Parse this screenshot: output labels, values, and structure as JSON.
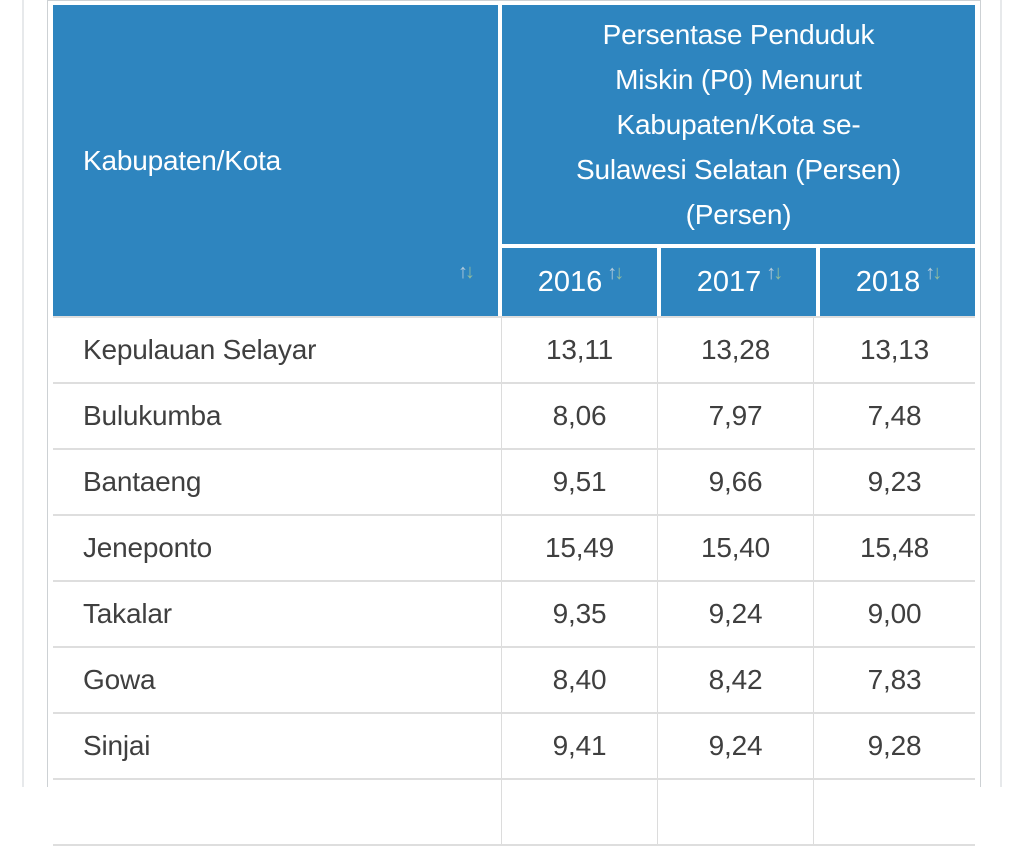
{
  "colors": {
    "header_blue": "#2e85bf",
    "header_text": "#ffffff",
    "body_text": "#3f3f3f",
    "row_border": "#dedede",
    "sort_up_arrow": "#b3cadb",
    "sort_down_arrow": "#90bb9d"
  },
  "icons": {
    "sort_asc": "↑",
    "sort_desc": "↓"
  },
  "table": {
    "name_header": "Kabupaten/Kota",
    "group_header": "Persentase Penduduk Miskin (P0) Menurut Kabupaten/Kota se-Sulawesi Selatan (Persen) (Persen)",
    "group_header_lines": [
      "Persentase Penduduk",
      "Miskin (P0) Menurut",
      "Kabupaten/Kota se-",
      "Sulawesi Selatan (Persen)",
      "(Persen)"
    ],
    "columns": [
      "2016",
      "2017",
      "2018"
    ],
    "rows": [
      {
        "name": "Kepulauan Selayar",
        "values": [
          "13,11",
          "13,28",
          "13,13"
        ]
      },
      {
        "name": "Bulukumba",
        "values": [
          "8,06",
          "7,97",
          "7,48"
        ]
      },
      {
        "name": "Bantaeng",
        "values": [
          "9,51",
          "9,66",
          "9,23"
        ]
      },
      {
        "name": "Jeneponto",
        "values": [
          "15,49",
          "15,40",
          "15,48"
        ]
      },
      {
        "name": "Takalar",
        "values": [
          "9,35",
          "9,24",
          "9,00"
        ]
      },
      {
        "name": "Gowa",
        "values": [
          "8,40",
          "8,42",
          "7,83"
        ]
      },
      {
        "name": "Sinjai",
        "values": [
          "9,41",
          "9,24",
          "9,28"
        ]
      },
      {
        "name": "",
        "values": [
          "",
          "",
          ""
        ]
      }
    ]
  }
}
